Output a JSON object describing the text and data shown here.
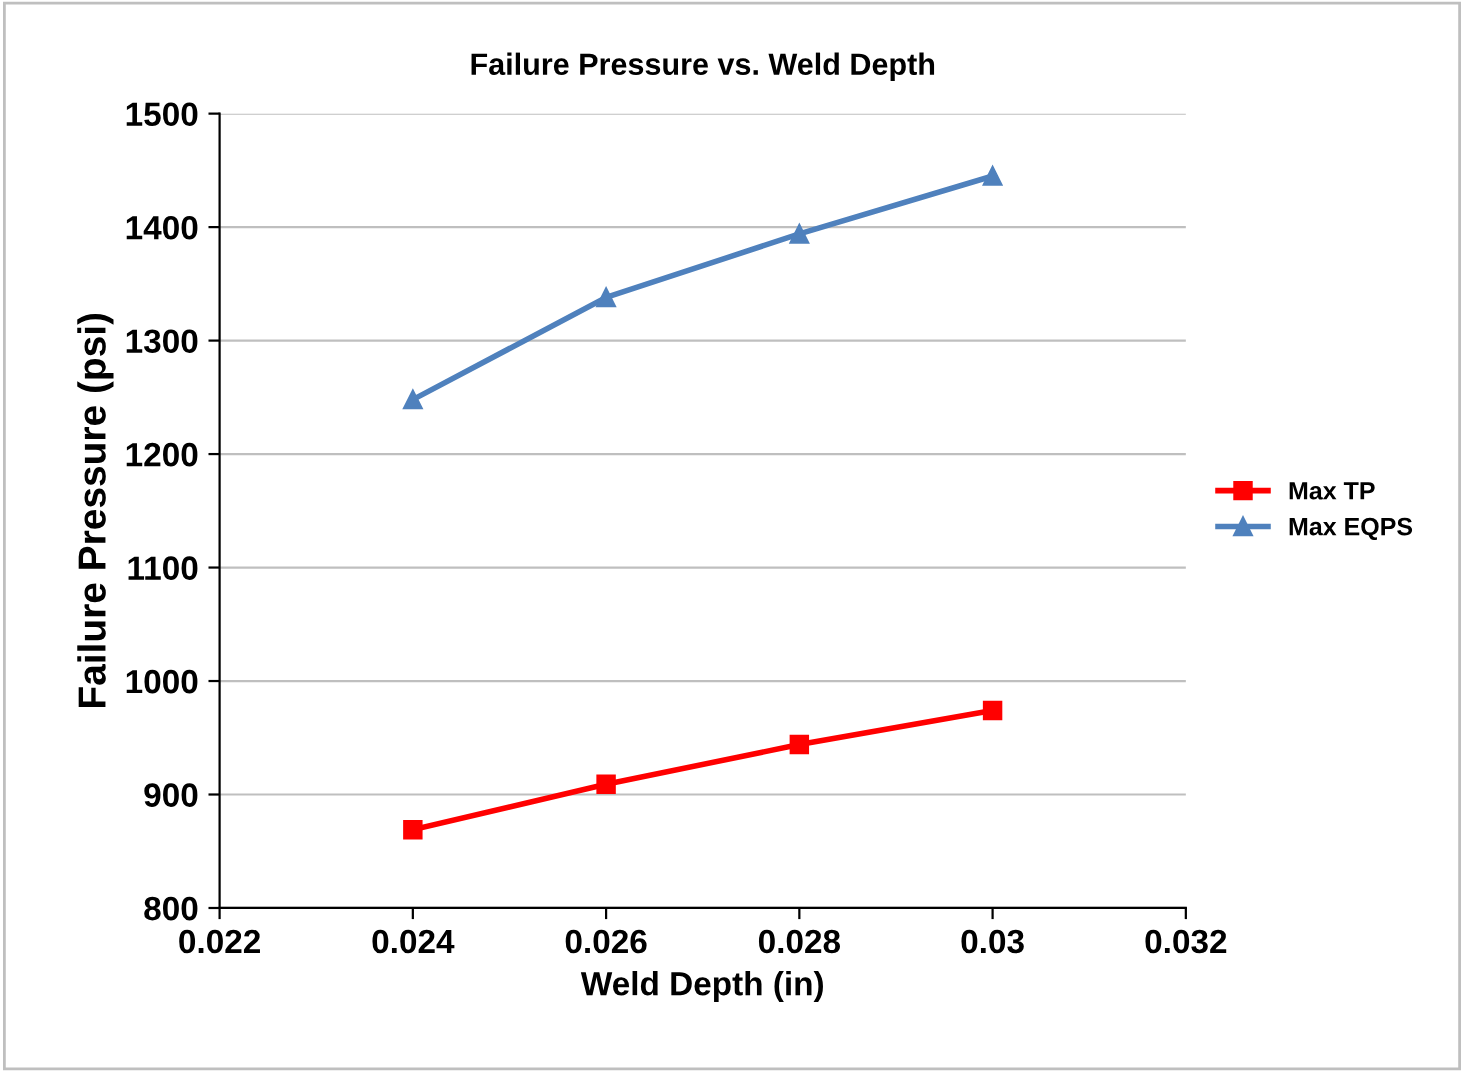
{
  "chart_data": {
    "type": "line",
    "title": "Failure Pressure vs. Weld Depth",
    "xlabel": "Weld Depth (in)",
    "ylabel": "Failure Pressure (psi)",
    "x": [
      0.024,
      0.026,
      0.028,
      0.03
    ],
    "series": [
      {
        "name": "Max TP",
        "color": "#ff0000",
        "marker": "square",
        "values": [
          869,
          909,
          944,
          974
        ]
      },
      {
        "name": "Max EQPS",
        "color": "#4f81bd",
        "marker": "triangle",
        "values": [
          1248,
          1338,
          1394,
          1445
        ]
      }
    ],
    "xlim": [
      0.022,
      0.032
    ],
    "xticks": [
      0.022,
      0.024,
      0.026,
      0.028,
      0.03,
      0.032
    ],
    "ylim": [
      800,
      1500
    ],
    "yticks": [
      800,
      900,
      1000,
      1100,
      1200,
      1300,
      1400,
      1500
    ],
    "grid": "y",
    "legend": "right",
    "line_style": "solid"
  }
}
